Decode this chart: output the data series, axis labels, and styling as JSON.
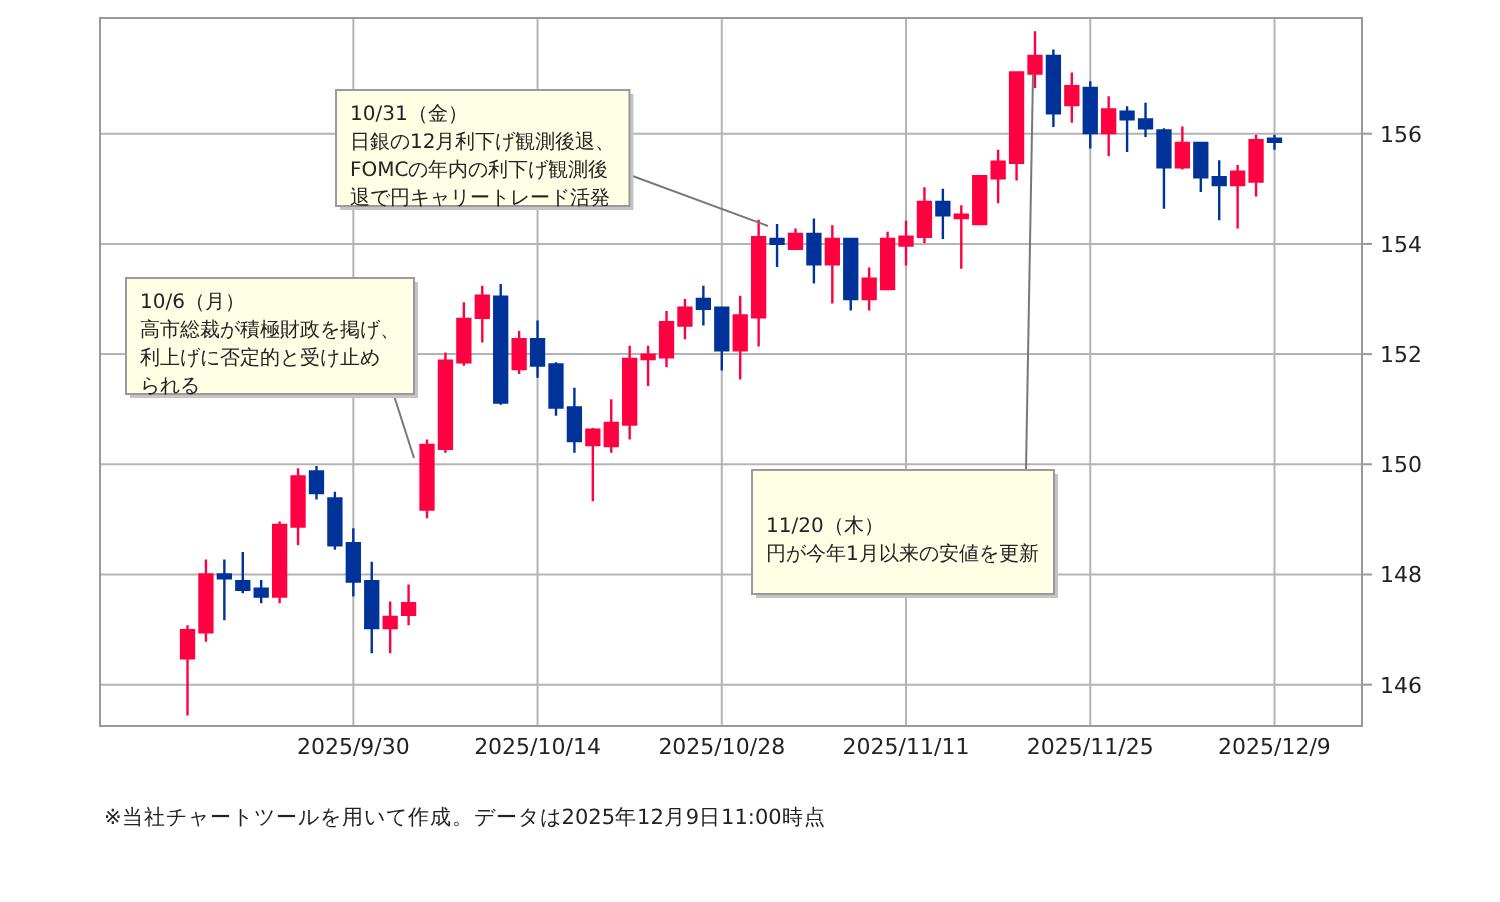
{
  "chart_data": {
    "type": "candlestick",
    "categories": [
      null,
      null,
      null,
      null,
      null,
      null,
      null,
      null,
      null,
      "2025/9/30",
      null,
      null,
      null,
      null,
      null,
      null,
      null,
      null,
      null,
      "2025/10/14",
      null,
      null,
      null,
      null,
      null,
      null,
      null,
      null,
      null,
      "2025/10/28",
      null,
      null,
      null,
      null,
      null,
      null,
      null,
      null,
      null,
      "2025/11/11",
      null,
      null,
      null,
      null,
      null,
      null,
      null,
      null,
      null,
      "2025/11/25",
      null,
      null,
      null,
      null,
      null,
      null,
      null,
      null,
      null,
      "2025/12/9"
    ],
    "ohlc": [
      [
        146.48,
        147.08,
        145.44,
        146.99
      ],
      [
        146.95,
        148.27,
        146.78,
        148.0
      ],
      [
        148.0,
        148.27,
        147.17,
        147.93
      ],
      [
        147.88,
        148.41,
        147.66,
        147.72
      ],
      [
        147.74,
        147.9,
        147.48,
        147.6
      ],
      [
        147.6,
        148.96,
        147.48,
        148.9
      ],
      [
        148.87,
        149.93,
        148.53,
        149.78
      ],
      [
        149.87,
        149.97,
        149.36,
        149.48
      ],
      [
        149.38,
        149.5,
        148.45,
        148.53
      ],
      [
        148.57,
        148.84,
        147.6,
        147.87
      ],
      [
        147.88,
        148.23,
        146.57,
        147.03
      ],
      [
        147.03,
        147.51,
        146.57,
        147.23
      ],
      [
        147.27,
        147.82,
        147.08,
        147.48
      ],
      [
        149.18,
        150.45,
        149.02,
        150.35
      ],
      [
        150.28,
        152.03,
        150.21,
        151.88
      ],
      [
        151.85,
        152.94,
        151.79,
        152.64
      ],
      [
        152.66,
        153.24,
        152.21,
        153.06
      ],
      [
        153.04,
        153.27,
        151.08,
        151.12
      ],
      [
        151.73,
        152.42,
        151.64,
        152.27
      ],
      [
        152.27,
        152.61,
        151.57,
        151.79
      ],
      [
        151.81,
        151.85,
        150.88,
        151.03
      ],
      [
        151.03,
        151.39,
        150.21,
        150.42
      ],
      [
        150.35,
        150.66,
        149.33,
        150.63
      ],
      [
        150.33,
        151.18,
        150.21,
        150.75
      ],
      [
        150.72,
        152.15,
        150.45,
        151.91
      ],
      [
        151.91,
        152.15,
        151.42,
        151.99
      ],
      [
        151.94,
        152.78,
        151.76,
        152.58
      ],
      [
        152.52,
        153.0,
        152.27,
        152.84
      ],
      [
        153.0,
        153.24,
        152.52,
        152.82
      ],
      [
        152.84,
        152.84,
        151.7,
        152.07
      ],
      [
        152.07,
        153.06,
        151.54,
        152.7
      ],
      [
        152.67,
        154.44,
        152.14,
        154.12
      ],
      [
        154.09,
        154.36,
        153.58,
        154.0
      ],
      [
        153.91,
        154.28,
        153.89,
        154.18
      ],
      [
        154.18,
        154.46,
        153.28,
        153.63
      ],
      [
        153.63,
        154.34,
        152.92,
        154.09
      ],
      [
        154.09,
        154.09,
        152.79,
        153.0
      ],
      [
        153.0,
        153.57,
        152.79,
        153.37
      ],
      [
        153.18,
        154.22,
        153.16,
        154.09
      ],
      [
        153.97,
        154.42,
        153.61,
        154.13
      ],
      [
        154.13,
        155.03,
        154.01,
        154.76
      ],
      [
        154.76,
        155.0,
        154.09,
        154.52
      ],
      [
        154.48,
        154.7,
        153.55,
        154.52
      ],
      [
        154.36,
        155.25,
        154.34,
        155.23
      ],
      [
        155.19,
        155.71,
        154.74,
        155.49
      ],
      [
        155.47,
        157.13,
        155.15,
        157.11
      ],
      [
        157.09,
        157.86,
        156.83,
        157.41
      ],
      [
        157.41,
        157.53,
        156.12,
        156.37
      ],
      [
        156.52,
        157.11,
        156.2,
        156.86
      ],
      [
        156.83,
        156.95,
        155.73,
        156.01
      ],
      [
        156.01,
        156.68,
        155.59,
        156.44
      ],
      [
        156.4,
        156.5,
        155.67,
        156.26
      ],
      [
        156.26,
        156.56,
        155.94,
        156.1
      ],
      [
        156.06,
        156.1,
        154.64,
        155.39
      ],
      [
        155.39,
        156.13,
        155.35,
        155.83
      ],
      [
        155.83,
        155.85,
        154.94,
        155.21
      ],
      [
        155.21,
        155.52,
        154.43,
        155.07
      ],
      [
        155.07,
        155.43,
        154.28,
        155.31
      ],
      [
        155.13,
        155.98,
        154.86,
        155.88
      ],
      [
        155.88,
        155.98,
        155.71,
        155.88
      ]
    ],
    "colors": [
      "#ff0040",
      "#ff0040",
      "#003399",
      "#003399",
      "#003399",
      "#ff0040",
      "#ff0040",
      "#003399",
      "#003399",
      "#003399",
      "#003399",
      "#ff0040",
      "#ff0040",
      "#ff0040",
      "#ff0040",
      "#ff0040",
      "#ff0040",
      "#003399",
      "#ff0040",
      "#003399",
      "#003399",
      "#003399",
      "#ff0040",
      "#ff0040",
      "#ff0040",
      "#ff0040",
      "#ff0040",
      "#ff0040",
      "#003399",
      "#003399",
      "#ff0040",
      "#ff0040",
      "#003399",
      "#ff0040",
      "#003399",
      "#ff0040",
      "#003399",
      "#ff0040",
      "#ff0040",
      "#ff0040",
      "#ff0040",
      "#003399",
      "#ff0040",
      "#ff0040",
      "#ff0040",
      "#ff0040",
      "#ff0040",
      "#003399",
      "#ff0040",
      "#003399",
      "#ff0040",
      "#003399",
      "#003399",
      "#003399",
      "#ff0040",
      "#003399",
      "#003399",
      "#ff0040",
      "#ff0040",
      "#003399"
    ],
    "ylim": [
      145.25,
      158.1
    ],
    "yticks": [
      146,
      148,
      150,
      152,
      154,
      156
    ],
    "grid": true,
    "annotations": [
      "10/6（月）高市総裁が積極財政を掲げ、利上げに否定的と受け止められる",
      "10/31（金）日銀の12月利下げ観測後退、FOMCの年内の利下げ観測後退で円キャリートレード活発",
      "11/20（木）円が今年1月以来の安値を更新",
      "※当社チャートツールを用いて作成。データは2025年12月9日11:00時点"
    ]
  }
}
